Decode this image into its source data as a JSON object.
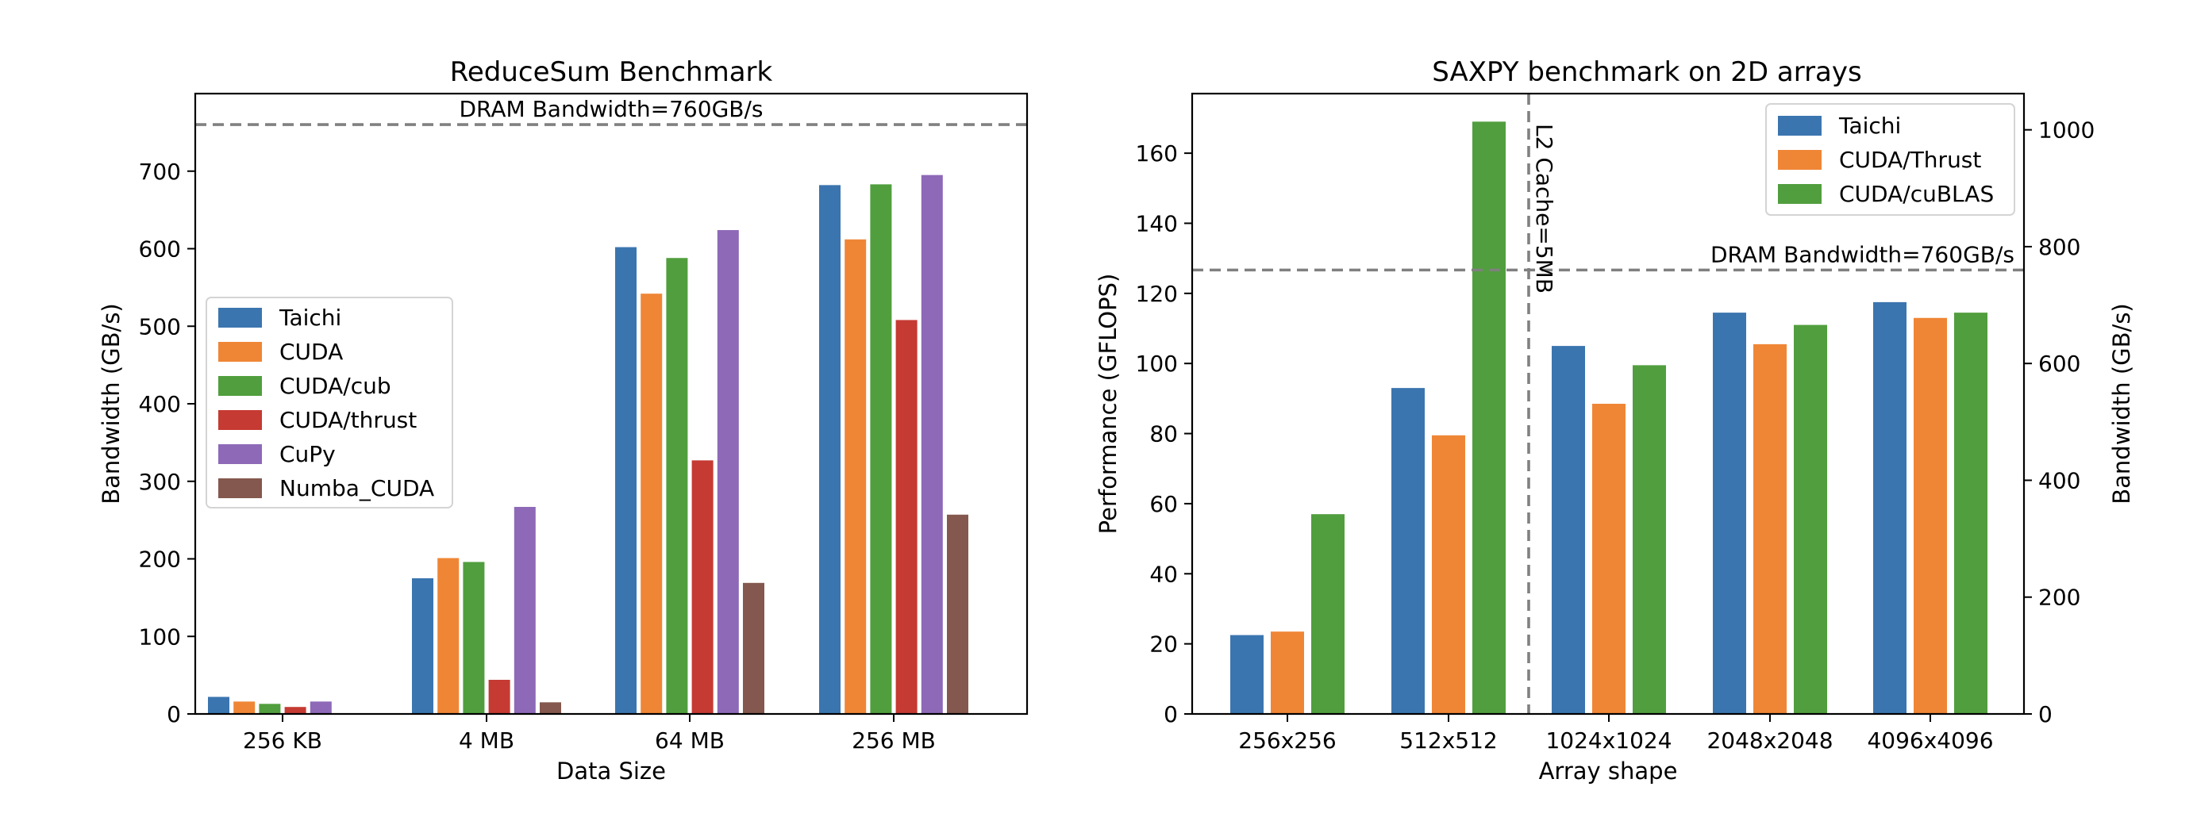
{
  "colors": {
    "Taichi": "#3b75af",
    "CUDA": "#ef8636",
    "CUDA/Thrust": "#ef8636",
    "CUDA/cub": "#519e3e",
    "CUDA/cuBLAS": "#519e3e",
    "CUDA/thrust": "#c53a32",
    "CuPy": "#8d69b8",
    "Numba_CUDA": "#84584e",
    "reference_line": "#808080"
  },
  "chart_data": [
    {
      "type": "bar",
      "title": "ReduceSum Benchmark",
      "xlabel": "Data Size",
      "ylabel": "Bandwidth (GB/s)",
      "ylim": [
        0,
        800
      ],
      "yticks": [
        0,
        100,
        200,
        300,
        400,
        500,
        600,
        700
      ],
      "categories": [
        "256 KB",
        "4 MB",
        "64 MB",
        "256 MB"
      ],
      "series": [
        {
          "name": "Taichi",
          "values": [
            22,
            175,
            602,
            682
          ]
        },
        {
          "name": "CUDA",
          "values": [
            16,
            201,
            542,
            612
          ]
        },
        {
          "name": "CUDA/cub",
          "values": [
            13,
            196,
            588,
            683
          ]
        },
        {
          "name": "CUDA/thrust",
          "values": [
            9,
            44,
            327,
            508
          ]
        },
        {
          "name": "CuPy",
          "values": [
            16,
            267,
            624,
            695
          ]
        },
        {
          "name": "Numba_CUDA",
          "values": [
            0.5,
            15,
            169,
            257
          ]
        }
      ],
      "reference_lines": [
        {
          "axis": "y",
          "value": 760,
          "label": "DRAM Bandwidth=760GB/s"
        }
      ],
      "legend": "center-left",
      "grid": false
    },
    {
      "type": "bar",
      "title": "SAXPY benchmark on 2D arrays",
      "xlabel": "Array shape",
      "ylabel": "Performance (GFLOPS)",
      "y2label": "Bandwidth (GB/s)",
      "ylim": [
        0,
        177
      ],
      "yticks": [
        0,
        20,
        40,
        60,
        80,
        100,
        120,
        140,
        160
      ],
      "y2lim": [
        0,
        1062
      ],
      "y2ticks": [
        0,
        200,
        400,
        600,
        800,
        1000
      ],
      "categories": [
        "256x256",
        "512x512",
        "1024x1024",
        "2048x2048",
        "4096x4096"
      ],
      "series": [
        {
          "name": "Taichi",
          "values": [
            22.5,
            93,
            105,
            114.5,
            117.5
          ]
        },
        {
          "name": "CUDA/Thrust",
          "values": [
            23.5,
            79.5,
            88.5,
            105.5,
            113
          ]
        },
        {
          "name": "CUDA/cuBLAS",
          "values": [
            57,
            169,
            99.5,
            111,
            114.5
          ]
        }
      ],
      "reference_lines": [
        {
          "axis": "y2",
          "value": 760,
          "label": "DRAM Bandwidth=760GB/s"
        },
        {
          "axis": "x",
          "value": 1.5,
          "label": "L2 Cache=5MB"
        }
      ],
      "legend": "top-right",
      "grid": false
    }
  ]
}
